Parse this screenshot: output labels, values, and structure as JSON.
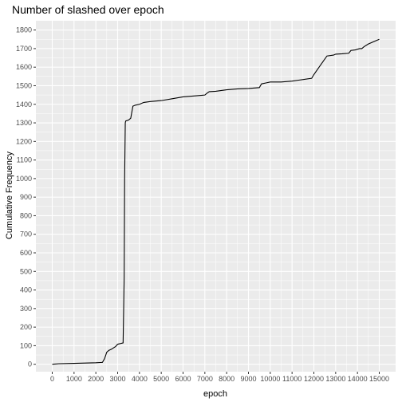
{
  "chart_data": {
    "type": "line",
    "title": "Number of slashed over epoch",
    "xlabel": "epoch",
    "ylabel": "Cumulative Frequency",
    "xlim": [
      -750,
      15750
    ],
    "ylim": [
      -40,
      1850
    ],
    "x_ticks": [
      0,
      1000,
      2000,
      3000,
      4000,
      5000,
      6000,
      7000,
      8000,
      9000,
      10000,
      11000,
      12000,
      13000,
      14000,
      15000
    ],
    "y_ticks": [
      0,
      100,
      200,
      300,
      400,
      500,
      600,
      700,
      800,
      900,
      1000,
      1100,
      1200,
      1300,
      1400,
      1500,
      1600,
      1700,
      1800
    ],
    "grid": true,
    "legend": "none",
    "colors": {
      "panel": "#ebebeb",
      "grid": "#ffffff",
      "line": "#000000",
      "tick_label": "#4d4d4d"
    },
    "series": [
      {
        "x": [
          0,
          300,
          1000,
          2000,
          2300,
          2400,
          2500,
          2600,
          2700,
          2900,
          3000,
          3150,
          3250,
          3300,
          3320,
          3350,
          3370,
          3500,
          3600,
          3700,
          3800,
          4000,
          4200,
          4500,
          5000,
          5500,
          6000,
          6500,
          7000,
          7100,
          7200,
          7500,
          8000,
          8500,
          9000,
          9500,
          9600,
          9800,
          10000,
          10500,
          11000,
          11300,
          11900,
          12000,
          12300,
          12600,
          12900,
          13000,
          13300,
          13600,
          13700,
          13900,
          14100,
          14200,
          14300,
          14500,
          15000
        ],
        "y": [
          0,
          3,
          5,
          8,
          10,
          30,
          65,
          75,
          80,
          95,
          108,
          112,
          115,
          470,
          1000,
          1300,
          1310,
          1315,
          1325,
          1390,
          1395,
          1400,
          1410,
          1415,
          1420,
          1430,
          1440,
          1445,
          1450,
          1460,
          1468,
          1470,
          1478,
          1483,
          1485,
          1490,
          1510,
          1515,
          1520,
          1520,
          1525,
          1530,
          1540,
          1560,
          1610,
          1660,
          1665,
          1670,
          1672,
          1675,
          1690,
          1693,
          1700,
          1700,
          1710,
          1725,
          1750
        ]
      }
    ]
  }
}
